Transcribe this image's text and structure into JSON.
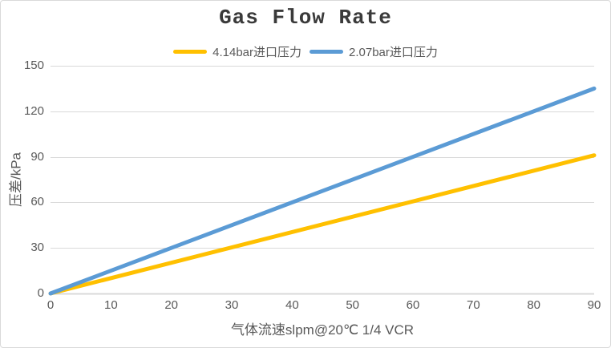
{
  "chart_data": {
    "type": "line",
    "title": "Gas Flow Rate",
    "xlabel": "气体流速slpm@20℃ 1/4 VCR",
    "ylabel": "压差/kPa",
    "xlim": [
      0,
      90
    ],
    "ylim": [
      0,
      150
    ],
    "xticks": [
      0,
      10,
      20,
      30,
      40,
      50,
      60,
      70,
      80,
      90
    ],
    "yticks": [
      0,
      30,
      60,
      90,
      120,
      150
    ],
    "grid": "horizontal",
    "legend_position": "top",
    "series": [
      {
        "name": "4.14bar进口压力",
        "color": "#FFC000",
        "x": [
          0,
          90
        ],
        "values": [
          0,
          91
        ]
      },
      {
        "name": "2.07bar进口压力",
        "color": "#5B9BD5",
        "x": [
          0,
          90
        ],
        "values": [
          0,
          135
        ]
      }
    ],
    "colors": {
      "title_text": "#3a3a3a",
      "axis_text": "#595959",
      "gridline": "#d9d9d9",
      "axis_line": "#d9d9d9",
      "frame_border": "#d9d9d9",
      "background": "#ffffff"
    }
  }
}
